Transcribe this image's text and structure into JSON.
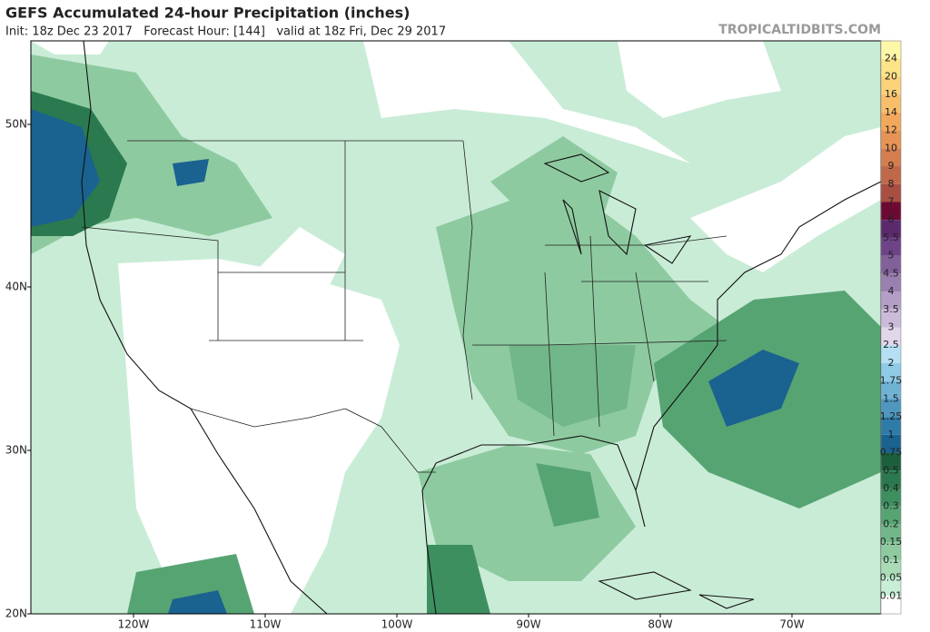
{
  "header": {
    "title": "GEFS Accumulated 24-hour Precipitation (inches)",
    "subtitle": "Init: 18z Dec 23 2017   Forecast Hour: [144]   valid at 18z Fri, Dec 29 2017",
    "watermark": "TROPICALTIDBITS.COM"
  },
  "map": {
    "lat_labels": [
      "50N",
      "40N",
      "30N",
      "20N"
    ],
    "lon_labels": [
      "120W",
      "110W",
      "100W",
      "90W",
      "80W",
      "70W"
    ]
  },
  "colorbar": {
    "labels": [
      "24",
      "20",
      "16",
      "14",
      "12",
      "10",
      "9",
      "8",
      "7",
      "6",
      "5.5",
      "5",
      "4.5",
      "4",
      "3.5",
      "3",
      "2.5",
      "2",
      "1.75",
      "1.5",
      "1.25",
      "1",
      "0.75",
      "0.5",
      "0.4",
      "0.3",
      "0.2",
      "0.15",
      "0.1",
      "0.05",
      "0.01"
    ],
    "colors": [
      "#fdf7a8",
      "#fde489",
      "#fcd27a",
      "#f8be6a",
      "#f2a85c",
      "#e59455",
      "#d47e4f",
      "#c0684a",
      "#a84e43",
      "#6b0b33",
      "#5b2a6d",
      "#6d4286",
      "#82609a",
      "#9a80b0",
      "#b39ec6",
      "#cbbbd9",
      "#e2d6ea",
      "#b5e0f3",
      "#8fcbe6",
      "#6fb2d4",
      "#4f97bf",
      "#2e7ba8",
      "#1a6290",
      "#1c5f3d",
      "#2b7a4f",
      "#3e8f60",
      "#57a473",
      "#72b789",
      "#8ecaa0",
      "#aadbb7",
      "#c8eed5",
      "#ffffff"
    ]
  }
}
